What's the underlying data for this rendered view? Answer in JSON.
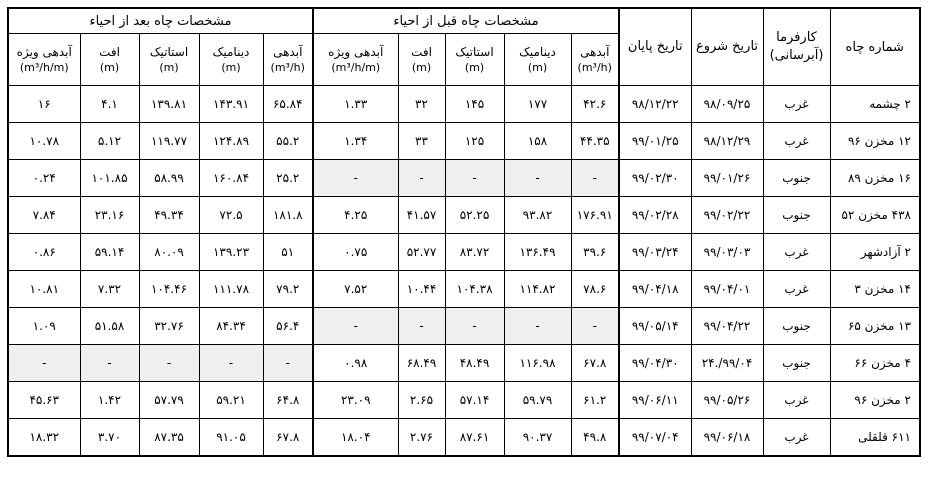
{
  "header": {
    "well_no": "شماره چاه",
    "employer": "کارفرما (آبرسانی)",
    "start_date": "تاریخ شروع",
    "end_date": "تاریخ پایان",
    "before_group": "مشخصات چاه قبل از احیاء",
    "after_group": "مشخصات چاه بعد از احیاء",
    "cols": [
      {
        "label": "آبدهی",
        "unit": "(m³/h)"
      },
      {
        "label": "دینامیک",
        "unit": "(m)"
      },
      {
        "label": "استاتیک",
        "unit": "(m)"
      },
      {
        "label": "افت",
        "unit": "(m)"
      },
      {
        "label": "آبدهی ویژه",
        "unit": "(m³/h/m)"
      }
    ]
  },
  "rows": [
    {
      "well": "۲ چشمه",
      "employer": "غرب",
      "start": "۹۸/۰۹/۲۵",
      "end": "۹۸/۱۲/۲۲",
      "before": [
        "۴۲.۶",
        "۱۷۷",
        "۱۴۵",
        "۳۲",
        "۱.۳۳"
      ],
      "after": [
        "۶۵.۸۴",
        "۱۴۳.۹۱",
        "۱۳۹.۸۱",
        "۴.۱",
        "۱۶"
      ]
    },
    {
      "well": "۱۲ مخزن ۹۶",
      "employer": "غرب",
      "start": "۹۸/۱۲/۲۹",
      "end": "۹۹/۰۱/۲۵",
      "before": [
        "۴۴.۳۵",
        "۱۵۸",
        "۱۲۵",
        "۳۳",
        "۱.۳۴"
      ],
      "after": [
        "۵۵.۲",
        "۱۲۴.۸۹",
        "۱۱۹.۷۷",
        "۵.۱۲",
        "۱۰.۷۸"
      ]
    },
    {
      "well": "۱۶ مخزن ۸۹",
      "employer": "جنوب",
      "start": "۹۹/۰۱/۲۶",
      "end": "۹۹/۰۲/۳۰",
      "before": [
        "-",
        "-",
        "-",
        "-",
        "-"
      ],
      "after": [
        "۲۵.۲",
        "۱۶۰.۸۴",
        "۵۸.۹۹",
        "۱۰۱.۸۵",
        "۰.۲۴"
      ]
    },
    {
      "well": "۴۳۸ مخزن ۵۲",
      "employer": "جنوب",
      "start": "۹۹/۰۲/۲۲",
      "end": "۹۹/۰۲/۲۸",
      "before": [
        "۱۷۶.۹۱",
        "۹۳.۸۲",
        "۵۲.۲۵",
        "۴۱.۵۷",
        "۴.۲۵"
      ],
      "after": [
        "۱۸۱.۸",
        "۷۲.۵",
        "۴۹.۳۴",
        "۲۳.۱۶",
        "۷.۸۴"
      ]
    },
    {
      "well": "۲ آزادشهر",
      "employer": "غرب",
      "start": "۹۹/۰۳/۰۳",
      "end": "۹۹/۰۳/۲۴",
      "before": [
        "۳۹.۶",
        "۱۳۶.۴۹",
        "۸۳.۷۲",
        "۵۲.۷۷",
        "۰.۷۵"
      ],
      "after": [
        "۵۱",
        "۱۳۹.۲۳",
        "۸۰.۰۹",
        "۵۹.۱۴",
        "۰.۸۶"
      ]
    },
    {
      "well": "۱۴ مخزن ۳",
      "employer": "غرب",
      "start": "۹۹/۰۴/۰۱",
      "end": "۹۹/۰۴/۱۸",
      "before": [
        "۷۸.۶",
        "۱۱۴.۸۲",
        "۱۰۴.۳۸",
        "۱۰.۴۴",
        "۷.۵۲"
      ],
      "after": [
        "۷۹.۲",
        "۱۱۱.۷۸",
        "۱۰۴.۴۶",
        "۷.۳۲",
        "۱۰.۸۱"
      ]
    },
    {
      "well": "۱۳ مخزن ۶۵",
      "employer": "جنوب",
      "start": "۹۹/۰۴/۲۲",
      "end": "۹۹/۰۵/۱۴",
      "before": [
        "-",
        "-",
        "-",
        "-",
        "-"
      ],
      "after": [
        "۵۶.۴",
        "۸۴.۳۴",
        "۳۲.۷۶",
        "۵۱.۵۸",
        "۱.۰۹"
      ]
    },
    {
      "well": "۴ مخزن ۶۶",
      "employer": "جنوب",
      "start": "۹۹/۰۴/.۲۴",
      "end": "۹۹/۰۴/۳۰",
      "before": [
        "۶۷.۸",
        "۱۱۶.۹۸",
        "۴۸.۴۹",
        "۶۸.۴۹",
        "۰.۹۸"
      ],
      "after": [
        "-",
        "-",
        "-",
        "-",
        "-"
      ]
    },
    {
      "well": "۲ مخزن ۹۶",
      "employer": "غرب",
      "start": "۹۹/۰۵/۲۶",
      "end": "۹۹/۰۶/۱۱",
      "before": [
        "۶۱.۲",
        "۵۹.۷۹",
        "۵۷.۱۴",
        "۲.۶۵",
        "۲۳.۰۹"
      ],
      "after": [
        "۶۴.۸",
        "۵۹.۲۱",
        "۵۷.۷۹",
        "۱.۴۲",
        "۴۵.۶۳"
      ]
    },
    {
      "well": "۶۱۱ قلقلی",
      "employer": "غرب",
      "start": "۹۹/۰۶/۱۸",
      "end": "۹۹/۰۷/۰۴",
      "before": [
        "۴۹.۸",
        "۹۰.۳۷",
        "۸۷.۶۱",
        "۲.۷۶",
        "۱۸.۰۴"
      ],
      "after": [
        "۶۷.۸",
        "۹۱.۰۵",
        "۸۷.۳۵",
        "۳.۷۰",
        "۱۸.۳۲"
      ]
    }
  ]
}
